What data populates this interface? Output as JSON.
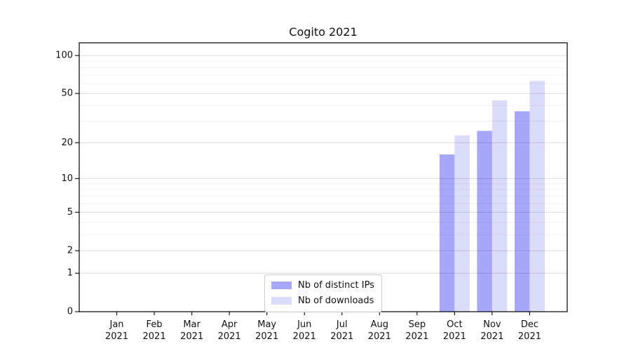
{
  "title": "Cogito 2021",
  "chart_data": {
    "type": "bar",
    "title": "Cogito 2021",
    "categories": [
      "Jan 2021",
      "Feb 2021",
      "Mar 2021",
      "Apr 2021",
      "May 2021",
      "Jun 2021",
      "Jul 2021",
      "Aug 2021",
      "Sep 2021",
      "Oct 2021",
      "Nov 2021",
      "Dec 2021"
    ],
    "series": [
      {
        "name": "Nb of distinct IPs",
        "color": "#a7a7fa",
        "values": [
          0,
          0,
          0,
          0,
          0,
          0,
          0,
          0,
          0,
          16,
          25,
          36
        ]
      },
      {
        "name": "Nb of downloads",
        "color": "#dbdbfa",
        "values": [
          0,
          0,
          0,
          0,
          0,
          0,
          0,
          0,
          0,
          23,
          44,
          63
        ]
      }
    ],
    "xlabel": "",
    "ylabel": "",
    "y_scale": "log1p",
    "y_ticks": [
      0,
      1,
      2,
      5,
      10,
      20,
      50,
      100
    ],
    "y_minor_gridlines": [
      3,
      4,
      6,
      7,
      8,
      9,
      30,
      40,
      60,
      70,
      80,
      90
    ],
    "ylim": [
      0,
      126
    ],
    "grid": "on",
    "legend_position": "lower center"
  }
}
